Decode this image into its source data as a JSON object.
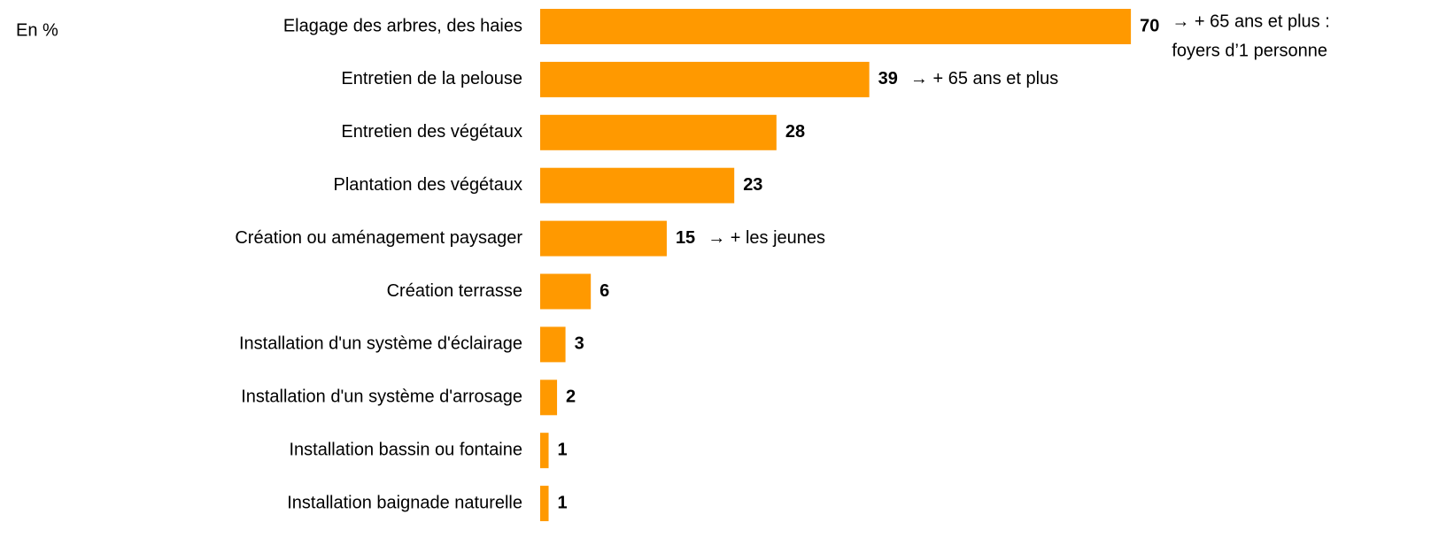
{
  "chart_data": {
    "type": "bar",
    "orientation": "horizontal",
    "unit_label": "En %",
    "color": "#ff9900",
    "categories": [
      "Elagage des arbres, des haies",
      "Entretien de la pelouse",
      "Entretien des végétaux",
      "Plantation des végétaux",
      "Création ou aménagement paysager",
      "Création terrasse",
      "Installation d'un système d'éclairage",
      "Installation d'un système d'arrosage",
      "Installation bassin ou fontaine",
      "Installation baignade naturelle"
    ],
    "values": [
      70,
      39,
      28,
      23,
      15,
      6,
      3,
      2,
      1,
      1
    ],
    "annotations": [
      [
        "→ + 65 ans et plus :",
        "foyers d’1 personne"
      ],
      "→ + 65 ans et plus",
      null,
      null,
      "→ + les jeunes",
      null,
      null,
      null,
      null,
      null
    ]
  }
}
